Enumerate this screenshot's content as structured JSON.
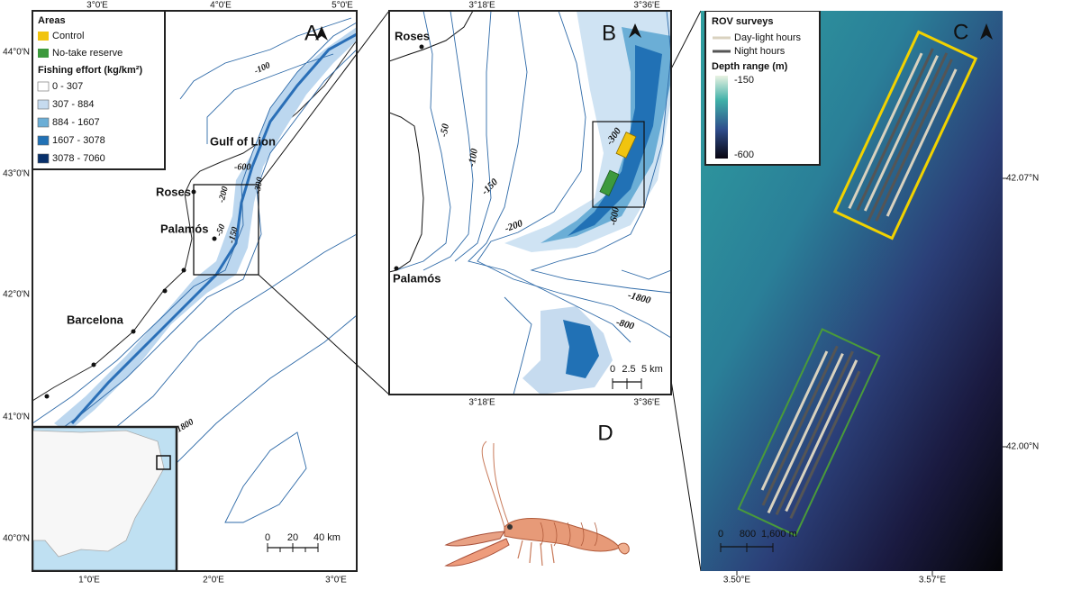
{
  "panel_a": {
    "label": "A",
    "lon_top": [
      "3°0'E",
      "4°0'E",
      "5°0'E"
    ],
    "lat": [
      "44°0'N",
      "43°0'N",
      "42°0'N",
      "41°0'N",
      "40°0'N"
    ],
    "lon_bottom": [
      "1°0'E",
      "2°0'E",
      "3°0'E"
    ],
    "legend": {
      "areas_title": "Areas",
      "areas": [
        "Control",
        "No-take reserve"
      ],
      "effort_title": "Fishing effort (kg/km²)",
      "effort": [
        "0 - 307",
        "307 - 884",
        "884 - 1607",
        "1607 - 3078",
        "3078 - 7060"
      ]
    },
    "places": [
      "Gulf of Lion",
      "Roses",
      "Palamós",
      "Barcelona"
    ],
    "contours": [
      "-100",
      "-600",
      "-200",
      "-50",
      "-150",
      "-300",
      "1800"
    ],
    "scale": [
      "0",
      "20",
      "40 km"
    ]
  },
  "panel_b": {
    "label": "B",
    "lon_top": [
      "3°18'E",
      "3°36'E"
    ],
    "lon_bottom": [
      "3°18'E",
      "3°36'E"
    ],
    "places": [
      "Roses",
      "Palamós"
    ],
    "contours": [
      "-50",
      "-100",
      "-150",
      "-200",
      "-300",
      "-600",
      "-1800",
      "-800"
    ],
    "scale": [
      "0",
      "2.5",
      "5 km"
    ]
  },
  "panel_c": {
    "label": "C",
    "legend": {
      "title": "ROV surveys",
      "items": [
        "Day-light hours",
        "Night hours"
      ],
      "depth_title": "Depth range (m)",
      "depth_range": [
        "-150",
        "-600"
      ]
    },
    "lat": [
      "42.07°N",
      "42.00°N"
    ],
    "lon": [
      "3.50°E",
      "3.57°E"
    ],
    "scale": [
      "0",
      "800",
      "1,600 m"
    ]
  },
  "panel_d": {
    "label": "D"
  }
}
